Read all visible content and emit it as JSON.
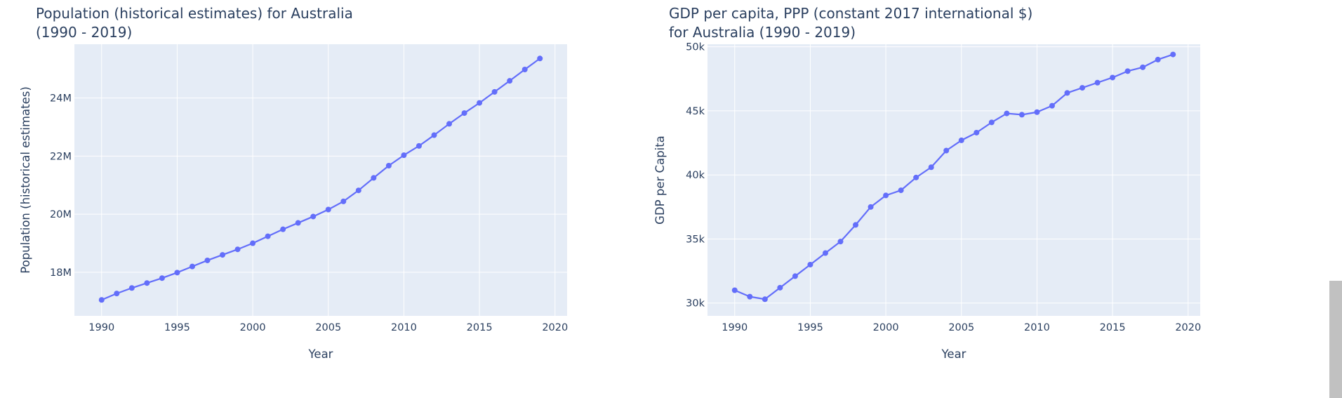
{
  "colors": {
    "plot_bg": "#E5ECF6",
    "grid": "#ffffff",
    "line": "#636EFA",
    "text": "#2a3f5f"
  },
  "chart_data": [
    {
      "type": "line",
      "title": "Population (historical estimates) for Australia\n(1990 - 2019)",
      "xlabel": "Year",
      "ylabel": "Population (historical estimates)",
      "xlim": [
        1988.2,
        2020.8
      ],
      "ylim": [
        16500000,
        25850000
      ],
      "xticks": [
        1990,
        1995,
        2000,
        2005,
        2010,
        2015,
        2020
      ],
      "xtick_labels": [
        "1990",
        "1995",
        "2000",
        "2005",
        "2010",
        "2015",
        "2020"
      ],
      "yticks": [
        18000000,
        20000000,
        22000000,
        24000000
      ],
      "ytick_labels": [
        "18M",
        "20M",
        "22M",
        "24M"
      ],
      "grid": true,
      "series": [
        {
          "x": [
            1990,
            1991,
            1992,
            1993,
            1994,
            1995,
            1996,
            1997,
            1998,
            1999,
            2000,
            2001,
            2002,
            2003,
            2004,
            2005,
            2006,
            2007,
            2008,
            2009,
            2010,
            2011,
            2012,
            2013,
            2014,
            2015,
            2016,
            2017,
            2018,
            2019
          ],
          "values": [
            17050000,
            17270000,
            17460000,
            17630000,
            17800000,
            17990000,
            18200000,
            18410000,
            18600000,
            18790000,
            19000000,
            19240000,
            19480000,
            19700000,
            19920000,
            20160000,
            20440000,
            20820000,
            21250000,
            21670000,
            22030000,
            22350000,
            22720000,
            23110000,
            23480000,
            23830000,
            24210000,
            24590000,
            24980000,
            25360000
          ]
        }
      ]
    },
    {
      "type": "line",
      "title": "GDP per capita, PPP (constant 2017 international $)\nfor Australia (1990 - 2019)",
      "xlabel": "Year",
      "ylabel": "GDP per Capita",
      "xlim": [
        1988.2,
        2020.8
      ],
      "ylim": [
        29000,
        50200
      ],
      "xticks": [
        1990,
        1995,
        2000,
        2005,
        2010,
        2015,
        2020
      ],
      "xtick_labels": [
        "1990",
        "1995",
        "2000",
        "2005",
        "2010",
        "2015",
        "2020"
      ],
      "yticks": [
        30000,
        35000,
        40000,
        45000,
        50000
      ],
      "ytick_labels": [
        "30k",
        "35k",
        "40k",
        "45k",
        "50k"
      ],
      "grid": true,
      "series": [
        {
          "x": [
            1990,
            1991,
            1992,
            1993,
            1994,
            1995,
            1996,
            1997,
            1998,
            1999,
            2000,
            2001,
            2002,
            2003,
            2004,
            2005,
            2006,
            2007,
            2008,
            2009,
            2010,
            2011,
            2012,
            2013,
            2014,
            2015,
            2016,
            2017,
            2018,
            2019
          ],
          "values": [
            31000,
            30500,
            30300,
            31200,
            32100,
            33000,
            33900,
            34800,
            36100,
            37500,
            38400,
            38800,
            39800,
            40600,
            41900,
            42700,
            43300,
            44100,
            44800,
            44700,
            44900,
            45400,
            46400,
            46800,
            47200,
            47600,
            48100,
            48400,
            49000,
            49400
          ]
        }
      ]
    }
  ]
}
